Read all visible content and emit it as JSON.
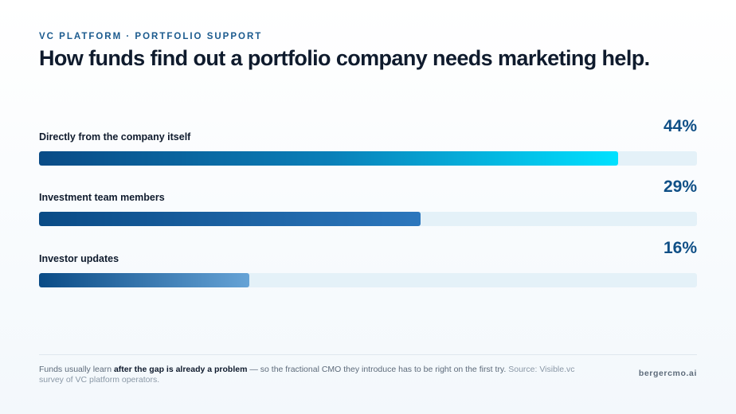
{
  "header": {
    "eyebrow": "VC PLATFORM · PORTFOLIO SUPPORT",
    "title": "How funds find out a portfolio company needs marketing help."
  },
  "chart_data": {
    "type": "bar",
    "orientation": "horizontal",
    "title": "How funds find out a portfolio company needs marketing help.",
    "categories": [
      "Directly from the company itself",
      "Investment team members",
      "Investor updates"
    ],
    "values": [
      44,
      29,
      16
    ],
    "value_labels": [
      "44%",
      "29%",
      "16%"
    ],
    "unit": "%",
    "xlim": [
      0,
      50
    ],
    "grid": false,
    "legend": "none",
    "colors": [
      "#00e1ff",
      "#2d77bd",
      "#66a3d6"
    ]
  },
  "footer": {
    "note_pre": "Funds usually learn ",
    "note_bold": "after the gap is already a problem",
    "note_post": " — so the fractional CMO they introduce has to be right on the first try. ",
    "source": "Source: Visible.vc survey of VC platform operators.",
    "brand": "bergercmo.ai"
  },
  "colors": {
    "accent": "#0f4f86",
    "track": "#e4f1f8",
    "text": "#0f1b2d"
  }
}
